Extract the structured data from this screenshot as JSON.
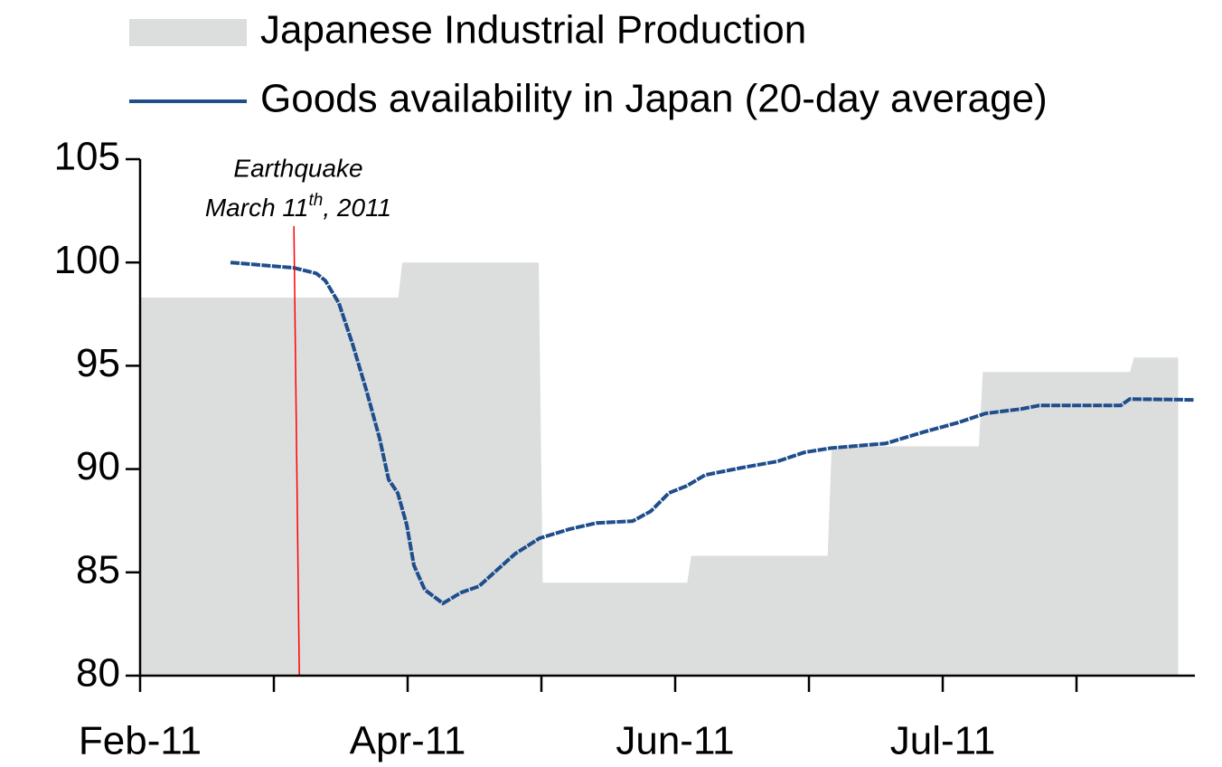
{
  "chart_data": {
    "type": "line",
    "legend": "top",
    "categories": [
      "Feb-11",
      null,
      "Apr-11",
      null,
      "Jun-11",
      null,
      "Jul-11",
      null
    ],
    "xlim": [
      0,
      7.885
    ],
    "ylim": [
      80,
      105
    ],
    "yticks": [
      80,
      85,
      90,
      95,
      100,
      105
    ],
    "series": [
      {
        "name": "Japanese Industrial Production",
        "kind": "area",
        "color": "#dcdddd",
        "x": [
          0,
          1.93,
          1.96,
          2.98,
          3.01,
          4.09,
          4.12,
          5.14,
          5.17,
          6.27,
          6.3,
          7.4,
          7.43,
          7.76
        ],
        "values": [
          98.3,
          98.3,
          100,
          100,
          84.5,
          84.5,
          85.8,
          85.8,
          91.1,
          91.1,
          94.7,
          94.7,
          95.4,
          95.4
        ]
      },
      {
        "name": "Goods availability in Japan (20-day average)",
        "kind": "line",
        "color": "#1f4e8c",
        "x": [
          0.676,
          1.149,
          1.318,
          1.385,
          1.486,
          1.588,
          1.689,
          1.791,
          1.858,
          1.926,
          1.993,
          2.047,
          2.128,
          2.264,
          2.399,
          2.534,
          2.669,
          2.804,
          2.986,
          3.209,
          3.412,
          3.682,
          3.818,
          3.953,
          4.088,
          4.223,
          4.493,
          4.764,
          4.966,
          5.169,
          5.574,
          5.845,
          6.115,
          6.318,
          6.588,
          6.723,
          7.331,
          7.399,
          7.885
        ],
        "values": [
          100.0,
          99.74,
          99.47,
          99.12,
          98.03,
          96.06,
          93.87,
          91.47,
          89.49,
          88.84,
          87.31,
          85.34,
          84.16,
          83.5,
          84.02,
          84.33,
          85.12,
          85.9,
          86.65,
          87.09,
          87.39,
          87.48,
          87.96,
          88.84,
          89.19,
          89.71,
          90.06,
          90.37,
          90.81,
          91.02,
          91.24,
          91.77,
          92.25,
          92.69,
          92.91,
          93.08,
          93.08,
          93.39,
          93.35
        ]
      }
    ],
    "annotations": [
      {
        "x": 1.17,
        "color": "#ff0000",
        "text": "Earthquake",
        "date": "March 11",
        "suffix": "th",
        "year": ", 2011"
      }
    ]
  }
}
